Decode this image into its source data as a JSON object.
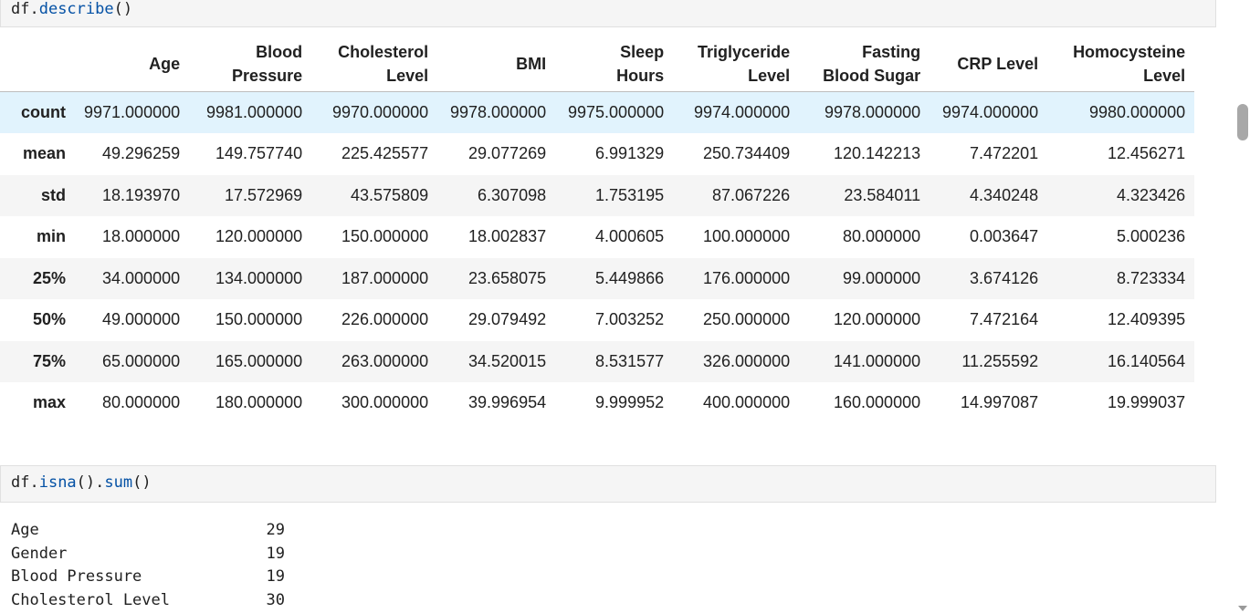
{
  "cells": [
    {
      "obj": "df.",
      "method": "describe",
      "args": "()"
    },
    {
      "obj": "df.",
      "method": "isna",
      "mid": "().",
      "method2": "sum",
      "args": "()"
    }
  ],
  "describe_table": {
    "columns": [
      [
        "Age"
      ],
      [
        "Blood",
        "Pressure"
      ],
      [
        "Cholesterol",
        "Level"
      ],
      [
        "BMI"
      ],
      [
        "Sleep",
        "Hours"
      ],
      [
        "Triglyceride",
        "Level"
      ],
      [
        "Fasting",
        "Blood Sugar"
      ],
      [
        "CRP Level"
      ],
      [
        "Homocysteine",
        "Level"
      ]
    ],
    "rows": [
      {
        "label": "count",
        "values": [
          "9971.000000",
          "9981.000000",
          "9970.000000",
          "9978.000000",
          "9975.000000",
          "9974.000000",
          "9978.000000",
          "9974.000000",
          "9980.000000"
        ]
      },
      {
        "label": "mean",
        "values": [
          "49.296259",
          "149.757740",
          "225.425577",
          "29.077269",
          "6.991329",
          "250.734409",
          "120.142213",
          "7.472201",
          "12.456271"
        ]
      },
      {
        "label": "std",
        "values": [
          "18.193970",
          "17.572969",
          "43.575809",
          "6.307098",
          "1.753195",
          "87.067226",
          "23.584011",
          "4.340248",
          "4.323426"
        ]
      },
      {
        "label": "min",
        "values": [
          "18.000000",
          "120.000000",
          "150.000000",
          "18.002837",
          "4.000605",
          "100.000000",
          "80.000000",
          "0.003647",
          "5.000236"
        ]
      },
      {
        "label": "25%",
        "values": [
          "34.000000",
          "134.000000",
          "187.000000",
          "23.658075",
          "5.449866",
          "176.000000",
          "99.000000",
          "3.674126",
          "8.723334"
        ]
      },
      {
        "label": "50%",
        "values": [
          "49.000000",
          "150.000000",
          "226.000000",
          "29.079492",
          "7.003252",
          "250.000000",
          "120.000000",
          "7.472164",
          "12.409395"
        ]
      },
      {
        "label": "75%",
        "values": [
          "65.000000",
          "165.000000",
          "263.000000",
          "34.520015",
          "8.531577",
          "326.000000",
          "141.000000",
          "11.255592",
          "16.140564"
        ]
      },
      {
        "label": "max",
        "values": [
          "80.000000",
          "180.000000",
          "300.000000",
          "39.996954",
          "9.999952",
          "400.000000",
          "160.000000",
          "14.997087",
          "19.999037"
        ]
      }
    ]
  },
  "isna_output": [
    {
      "label": "Age",
      "value": "29"
    },
    {
      "label": "Gender",
      "value": "19"
    },
    {
      "label": "Blood Pressure",
      "value": "19"
    },
    {
      "label": "Cholesterol Level",
      "value": "30"
    }
  ],
  "colors": {
    "code_keyword": "#0451a5",
    "hover_row": "#e1f3fd",
    "stripe": "#f5f5f5"
  }
}
